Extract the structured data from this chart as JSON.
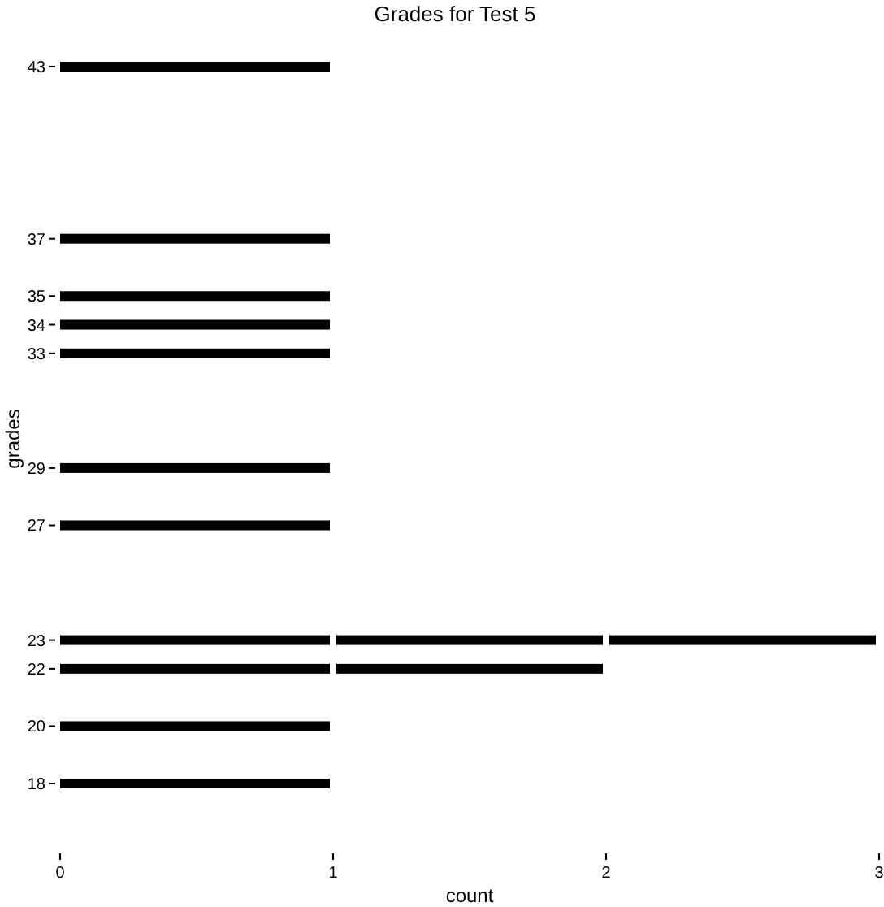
{
  "chart_data": {
    "type": "bar",
    "orientation": "horizontal",
    "stacked": true,
    "title": "Grades for Test 5",
    "xlabel": "count",
    "ylabel": "grades",
    "x": [
      18,
      20,
      22,
      23,
      27,
      29,
      33,
      34,
      35,
      37,
      43
    ],
    "series": [
      {
        "color": "#000000",
        "values": [
          1,
          1,
          1,
          1,
          1,
          1,
          1,
          1,
          1,
          1,
          1
        ]
      },
      {
        "color": "#000000",
        "values": [
          null,
          null,
          1,
          1,
          null,
          null,
          null,
          null,
          null,
          null,
          null
        ]
      },
      {
        "color": "#000000",
        "values": [
          null,
          null,
          null,
          1,
          null,
          null,
          null,
          null,
          null,
          null,
          null
        ]
      }
    ],
    "xlim": [
      0,
      3
    ],
    "xticks": [
      0,
      1,
      2,
      3
    ],
    "ylim": [
      18,
      43
    ],
    "yticks": [
      18,
      20,
      22,
      23,
      27,
      29,
      33,
      34,
      35,
      37,
      43
    ],
    "grid": false
  }
}
